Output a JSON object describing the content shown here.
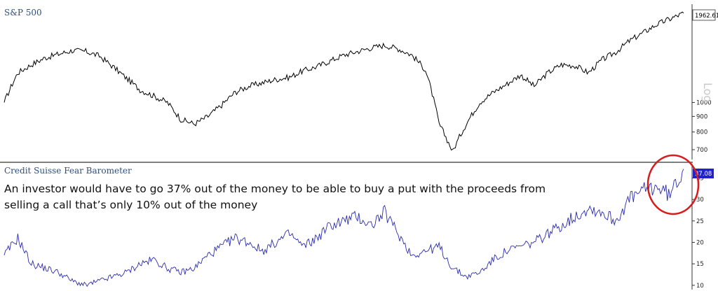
{
  "chart_data": [
    {
      "type": "line",
      "title": "S&P 500",
      "scale_label": "Log",
      "yscale": "log",
      "ylim": [
        650,
        2100
      ],
      "yticks": [
        700,
        800,
        900,
        1000
      ],
      "last_value_label": "1962.61",
      "grid": false,
      "series": [
        {
          "color": "#000000",
          "x": [
            0,
            0.02,
            0.04,
            0.06,
            0.08,
            0.1,
            0.12,
            0.14,
            0.16,
            0.18,
            0.2,
            0.22,
            0.24,
            0.26,
            0.28,
            0.3,
            0.32,
            0.34,
            0.36,
            0.38,
            0.4,
            0.42,
            0.44,
            0.46,
            0.48,
            0.5,
            0.52,
            0.54,
            0.56,
            0.58,
            0.6,
            0.62,
            0.64,
            0.66,
            0.68,
            0.7,
            0.72,
            0.74,
            0.76,
            0.78,
            0.8,
            0.82,
            0.84,
            0.86,
            0.88,
            0.9,
            0.92,
            0.94,
            0.96,
            0.98,
            1.0
          ],
          "values": [
            1000,
            1250,
            1330,
            1400,
            1440,
            1480,
            1470,
            1420,
            1310,
            1200,
            1100,
            1050,
            1000,
            880,
            850,
            900,
            980,
            1080,
            1130,
            1160,
            1190,
            1210,
            1270,
            1310,
            1370,
            1430,
            1470,
            1510,
            1540,
            1500,
            1430,
            1280,
            850,
            690,
            850,
            1000,
            1080,
            1150,
            1230,
            1130,
            1250,
            1330,
            1320,
            1250,
            1380,
            1460,
            1590,
            1690,
            1800,
            1880,
            1962.61
          ]
        }
      ]
    },
    {
      "type": "line",
      "title": "Credit Suisse Fear Barometer",
      "ylim": [
        9,
        38
      ],
      "yticks": [
        10,
        15,
        20,
        25,
        30,
        35
      ],
      "last_value_label": "37.08",
      "annotation": "An investor would have to go 37% out of the money to be able to buy a put with the proceeds from selling a call that’s only 10% out of the money",
      "grid": false,
      "series": [
        {
          "color": "#2b2bb0",
          "x": [
            0,
            0.02,
            0.04,
            0.06,
            0.08,
            0.1,
            0.12,
            0.14,
            0.16,
            0.18,
            0.2,
            0.22,
            0.24,
            0.26,
            0.28,
            0.3,
            0.32,
            0.34,
            0.36,
            0.38,
            0.4,
            0.42,
            0.44,
            0.46,
            0.48,
            0.5,
            0.52,
            0.54,
            0.56,
            0.58,
            0.6,
            0.62,
            0.64,
            0.66,
            0.68,
            0.7,
            0.72,
            0.74,
            0.76,
            0.78,
            0.8,
            0.82,
            0.84,
            0.86,
            0.88,
            0.9,
            0.92,
            0.94,
            0.96,
            0.98,
            1.0
          ],
          "values": [
            17,
            21,
            15,
            14,
            13,
            11,
            10,
            11,
            12,
            13,
            15,
            16,
            14,
            13,
            14,
            17,
            19,
            21,
            20,
            18,
            20,
            22,
            19,
            21,
            24,
            25,
            26,
            24,
            27,
            22,
            17,
            18,
            19,
            14,
            12,
            13,
            16,
            18,
            19,
            20,
            22,
            24,
            26,
            28,
            27,
            25,
            30,
            32,
            33,
            31,
            37.08
          ]
        }
      ]
    }
  ]
}
